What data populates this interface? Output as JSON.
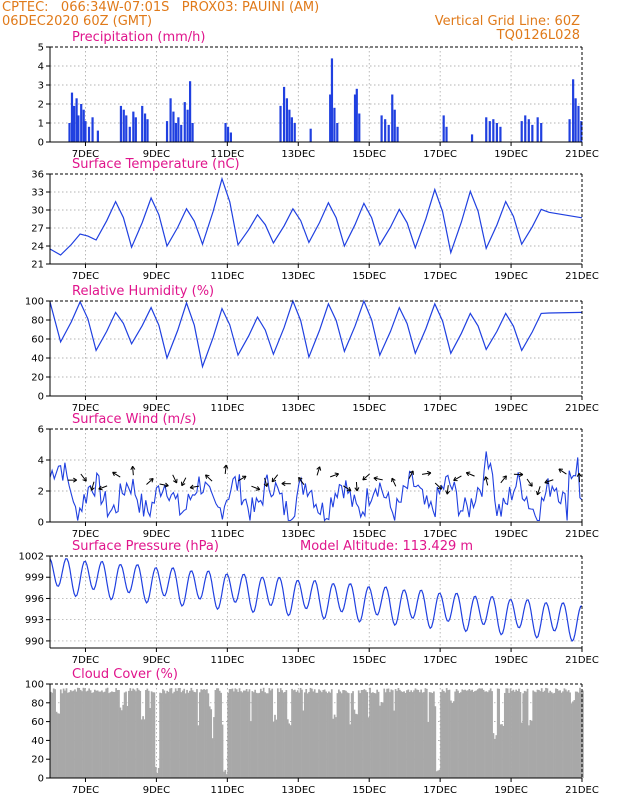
{
  "header": {
    "line1": "CPTEC:   066:34W-07:01S   PROX03: PAUINI (AM)",
    "line2": "06DEC2020 60Z (GMT)",
    "right1": "Vertical Grid Line: 60Z",
    "right2": "TQ0126L028"
  },
  "colors": {
    "header": "#e07a1a",
    "title": "#e0158c",
    "line": "#2040e0",
    "cloud": "#a8a8a8"
  },
  "x_tick_labels": [
    "7DEC",
    "9DEC",
    "11DEC",
    "13DEC",
    "15DEC",
    "17DEC",
    "19DEC",
    "21DEC"
  ],
  "chart_data": [
    {
      "type": "bar",
      "title": "Precipitation (mm/h)",
      "ylim": [
        0,
        5
      ],
      "yticks": [
        0,
        1,
        2,
        3,
        4,
        5
      ],
      "grid": true,
      "events": [
        {
          "x": 6.55,
          "v": 1.0
        },
        {
          "x": 6.62,
          "v": 2.6
        },
        {
          "x": 6.68,
          "v": 1.9
        },
        {
          "x": 6.75,
          "v": 2.3
        },
        {
          "x": 6.8,
          "v": 1.4
        },
        {
          "x": 6.88,
          "v": 2.0
        },
        {
          "x": 6.95,
          "v": 1.7
        },
        {
          "x": 7.0,
          "v": 1.1
        },
        {
          "x": 7.1,
          "v": 0.8
        },
        {
          "x": 7.2,
          "v": 1.3
        },
        {
          "x": 7.35,
          "v": 0.6
        },
        {
          "x": 8.0,
          "v": 1.9
        },
        {
          "x": 8.08,
          "v": 1.7
        },
        {
          "x": 8.15,
          "v": 1.4
        },
        {
          "x": 8.25,
          "v": 0.8
        },
        {
          "x": 8.35,
          "v": 1.6
        },
        {
          "x": 8.42,
          "v": 1.3
        },
        {
          "x": 8.6,
          "v": 1.9
        },
        {
          "x": 8.68,
          "v": 1.5
        },
        {
          "x": 8.75,
          "v": 1.2
        },
        {
          "x": 9.3,
          "v": 1.1
        },
        {
          "x": 9.4,
          "v": 2.3
        },
        {
          "x": 9.48,
          "v": 1.6
        },
        {
          "x": 9.55,
          "v": 1.0
        },
        {
          "x": 9.62,
          "v": 1.3
        },
        {
          "x": 9.7,
          "v": 0.9
        },
        {
          "x": 9.8,
          "v": 2.1
        },
        {
          "x": 9.88,
          "v": 1.7
        },
        {
          "x": 9.95,
          "v": 3.2
        },
        {
          "x": 10.02,
          "v": 1.0
        },
        {
          "x": 10.95,
          "v": 1.0
        },
        {
          "x": 11.02,
          "v": 0.8
        },
        {
          "x": 11.1,
          "v": 0.5
        },
        {
          "x": 12.5,
          "v": 1.9
        },
        {
          "x": 12.6,
          "v": 2.9
        },
        {
          "x": 12.68,
          "v": 2.3
        },
        {
          "x": 12.75,
          "v": 1.7
        },
        {
          "x": 12.82,
          "v": 1.3
        },
        {
          "x": 12.9,
          "v": 1.0
        },
        {
          "x": 13.35,
          "v": 0.7
        },
        {
          "x": 13.9,
          "v": 2.5
        },
        {
          "x": 13.95,
          "v": 4.4
        },
        {
          "x": 14.02,
          "v": 1.8
        },
        {
          "x": 14.1,
          "v": 1.0
        },
        {
          "x": 14.6,
          "v": 2.5
        },
        {
          "x": 14.65,
          "v": 2.8
        },
        {
          "x": 14.72,
          "v": 1.5
        },
        {
          "x": 15.35,
          "v": 1.4
        },
        {
          "x": 15.45,
          "v": 1.2
        },
        {
          "x": 15.55,
          "v": 0.9
        },
        {
          "x": 15.65,
          "v": 2.5
        },
        {
          "x": 15.72,
          "v": 1.7
        },
        {
          "x": 15.8,
          "v": 0.8
        },
        {
          "x": 17.1,
          "v": 1.4
        },
        {
          "x": 17.18,
          "v": 0.8
        },
        {
          "x": 17.9,
          "v": 0.4
        },
        {
          "x": 18.3,
          "v": 1.3
        },
        {
          "x": 18.4,
          "v": 1.1
        },
        {
          "x": 18.5,
          "v": 1.2
        },
        {
          "x": 18.6,
          "v": 1.0
        },
        {
          "x": 18.7,
          "v": 0.8
        },
        {
          "x": 19.3,
          "v": 1.1
        },
        {
          "x": 19.4,
          "v": 1.4
        },
        {
          "x": 19.5,
          "v": 1.2
        },
        {
          "x": 19.6,
          "v": 0.9
        },
        {
          "x": 19.75,
          "v": 1.3
        },
        {
          "x": 19.85,
          "v": 1.0
        },
        {
          "x": 20.65,
          "v": 1.2
        },
        {
          "x": 20.75,
          "v": 3.3
        },
        {
          "x": 20.82,
          "v": 2.3
        },
        {
          "x": 20.9,
          "v": 1.9
        },
        {
          "x": 20.98,
          "v": 1.1
        }
      ]
    },
    {
      "type": "line",
      "title": "Surface Temperature (nC)",
      "ylim": [
        21,
        36
      ],
      "yticks": [
        21,
        24,
        27,
        30,
        33,
        36
      ],
      "grid": true,
      "min": [
        22.5,
        25,
        23.8,
        24,
        24.3,
        24.2,
        24.5,
        24.6,
        24,
        24.2,
        23.7,
        22.9,
        23.6,
        24.3
      ],
      "max": [
        26,
        31.4,
        32,
        30.2,
        35.2,
        29.2,
        30.2,
        31.2,
        31.1,
        30.1,
        33.4,
        33.1,
        31.4,
        30.1
      ],
      "end": 28.7
    },
    {
      "type": "line",
      "title": "Relative Humidity (%)",
      "ylim": [
        0,
        100
      ],
      "yticks": [
        0,
        20,
        40,
        60,
        80,
        100
      ],
      "grid": true,
      "min": [
        57,
        48,
        55,
        40,
        31,
        43,
        44,
        41,
        47,
        43,
        45,
        45,
        49,
        48
      ],
      "max": [
        99,
        88,
        93,
        98,
        92,
        83,
        100,
        97,
        100,
        93,
        97,
        87,
        87,
        87
      ],
      "end": 88
    },
    {
      "type": "line",
      "title": "Surface Wind (m/s)",
      "ylim": [
        0,
        6
      ],
      "yticks": [
        0,
        2,
        4,
        6
      ],
      "grid": true
    },
    {
      "type": "line",
      "title": "Surface Pressure (hPa)",
      "ylim": [
        989,
        1002
      ],
      "yticks": [
        990,
        993,
        996,
        999,
        1002
      ],
      "grid": true,
      "annotation": "Model Altitude: 113.429 m"
    },
    {
      "type": "area",
      "title": "Cloud Cover (%)",
      "ylim": [
        0,
        100
      ],
      "yticks": [
        0,
        20,
        40,
        60,
        80,
        100
      ],
      "grid": true,
      "base": 96,
      "dips": [
        {
          "x": 6.2,
          "v": 68
        },
        {
          "x": 8.0,
          "v": 72
        },
        {
          "x": 8.6,
          "v": 60
        },
        {
          "x": 9.0,
          "v": 4
        },
        {
          "x": 10.5,
          "v": 70
        },
        {
          "x": 10.9,
          "v": 3
        },
        {
          "x": 12.3,
          "v": 60
        },
        {
          "x": 12.7,
          "v": 55
        },
        {
          "x": 14.0,
          "v": 62
        },
        {
          "x": 14.6,
          "v": 65
        },
        {
          "x": 15.3,
          "v": 75
        },
        {
          "x": 16.9,
          "v": 3
        },
        {
          "x": 17.3,
          "v": 75
        },
        {
          "x": 18.5,
          "v": 40
        },
        {
          "x": 18.7,
          "v": 50
        },
        {
          "x": 19.5,
          "v": 55
        },
        {
          "x": 20.7,
          "v": 75
        }
      ]
    }
  ]
}
